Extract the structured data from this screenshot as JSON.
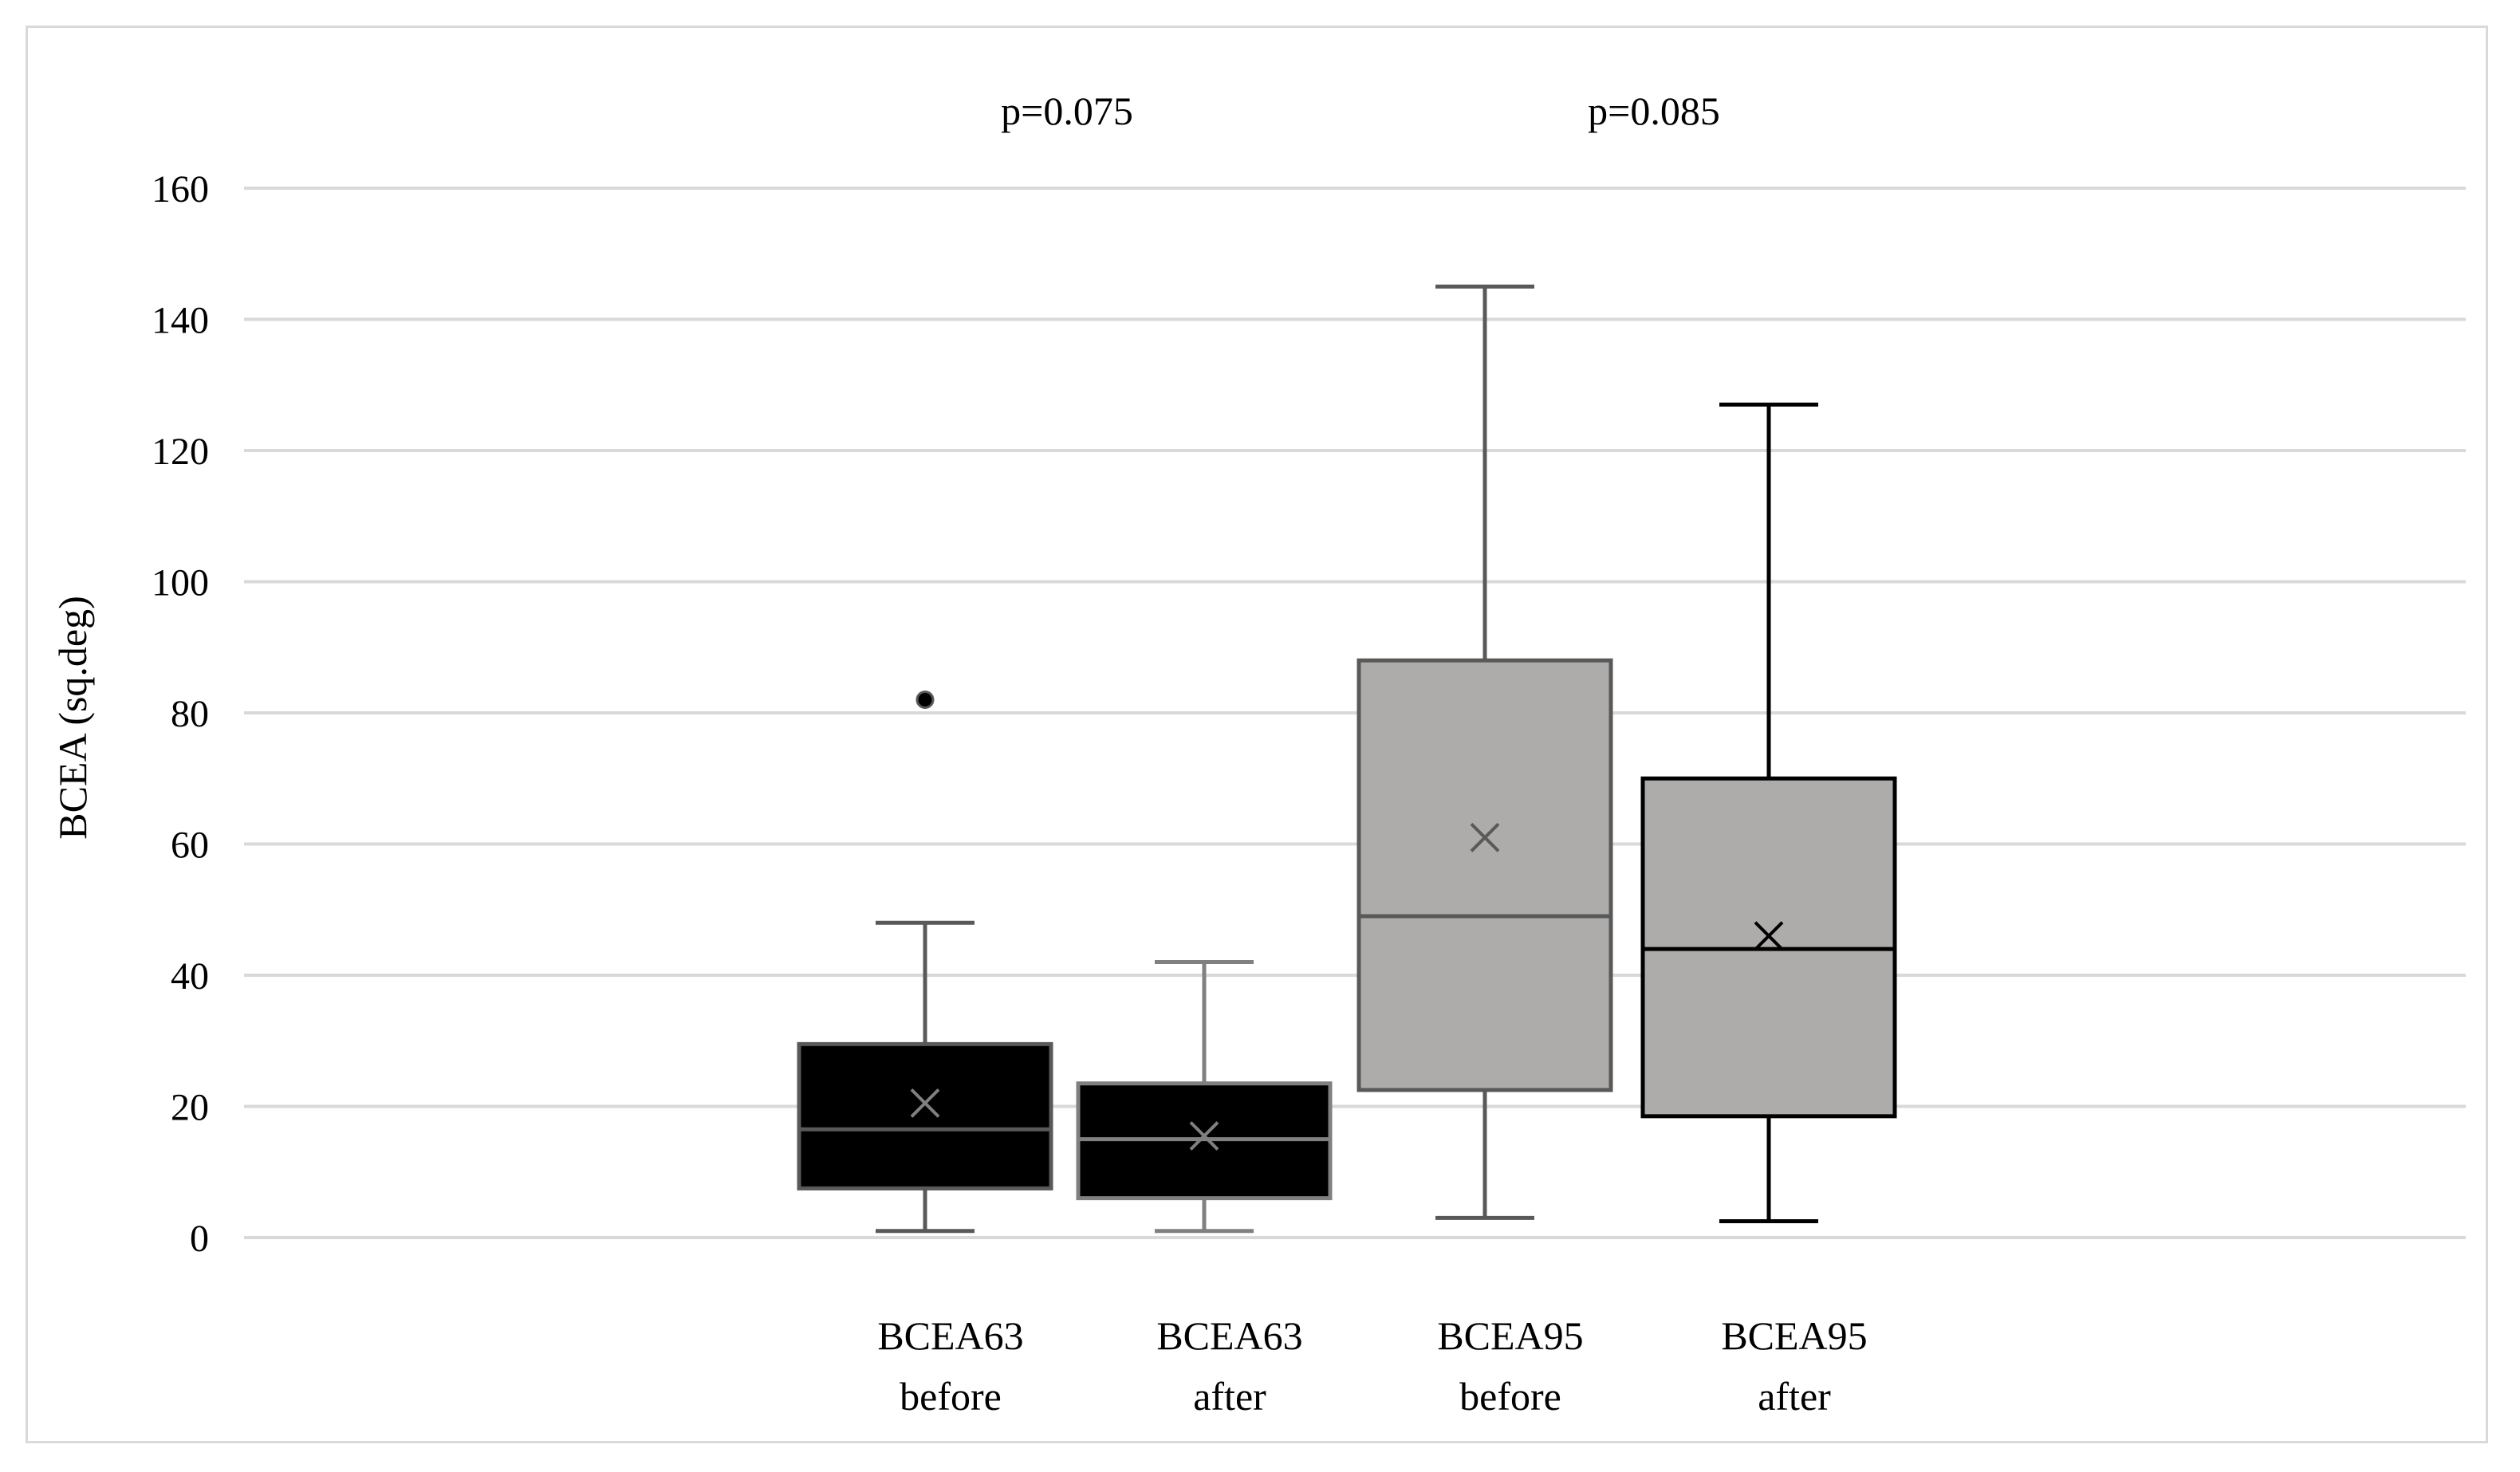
{
  "chart_data": {
    "type": "boxplot",
    "ylabel": "BCEA (sq.deg)",
    "xlabel": "",
    "ylim": [
      0,
      160
    ],
    "yticks": [
      0,
      20,
      40,
      60,
      80,
      100,
      120,
      140,
      160
    ],
    "grid": true,
    "annotations": [
      {
        "text": "p=0.075",
        "between": [
          "BCEA63 before",
          "BCEA63 after"
        ]
      },
      {
        "text": "p=0.085",
        "between": [
          "BCEA95 before",
          "BCEA95 after"
        ]
      }
    ],
    "boxes": [
      {
        "label_lines": [
          "BCEA63",
          "before"
        ],
        "whisker_low": 1,
        "q1": 7.5,
        "median": 16.5,
        "q3": 29.5,
        "whisker_high": 48,
        "mean": 20.5,
        "outliers": [
          82
        ],
        "fill": "#000000",
        "stroke": "#595959",
        "mean_color": "#808080",
        "whisker_color": "#595959"
      },
      {
        "label_lines": [
          "BCEA63",
          "after"
        ],
        "whisker_low": 1,
        "q1": 6,
        "median": 15,
        "q3": 23.5,
        "whisker_high": 42,
        "mean": 15.5,
        "outliers": [],
        "fill": "#000000",
        "stroke": "#808080",
        "mean_color": "#808080",
        "whisker_color": "#808080"
      },
      {
        "label_lines": [
          "BCEA95",
          "before"
        ],
        "whisker_low": 3,
        "q1": 22.5,
        "median": 49,
        "q3": 88,
        "whisker_high": 145,
        "mean": 61,
        "outliers": [],
        "fill": "#aeabab",
        "stroke": "#595959",
        "mean_color": "#595959",
        "whisker_color": "#595959"
      },
      {
        "label_lines": [
          "BCEA95",
          "after"
        ],
        "whisker_low": 2.5,
        "q1": 18.5,
        "median": 44,
        "q3": 70,
        "whisker_high": 127,
        "mean": 46,
        "outliers": [],
        "fill": "#aeabab",
        "stroke": "#000000",
        "mean_color": "#000000",
        "whisker_color": "#000000"
      }
    ]
  }
}
